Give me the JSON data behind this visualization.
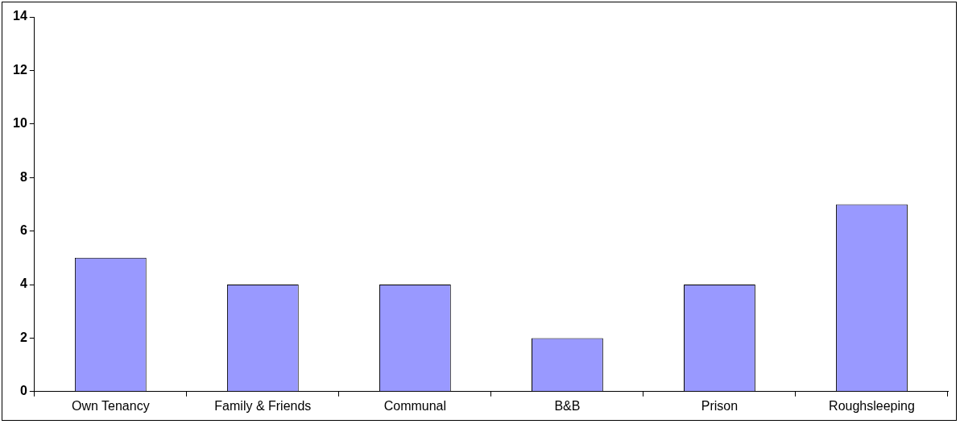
{
  "chart_data": {
    "type": "bar",
    "categories": [
      "Own Tenancy",
      "Family & Friends",
      "Communal",
      "B&B",
      "Prison",
      "Roughsleeping"
    ],
    "values": [
      5,
      4,
      4,
      2,
      4,
      7
    ],
    "color": "#9999ff",
    "ylim": [
      0,
      14
    ],
    "yticks": [
      0,
      2,
      4,
      6,
      8,
      10,
      12,
      14
    ],
    "grid": false,
    "legend": false
  }
}
